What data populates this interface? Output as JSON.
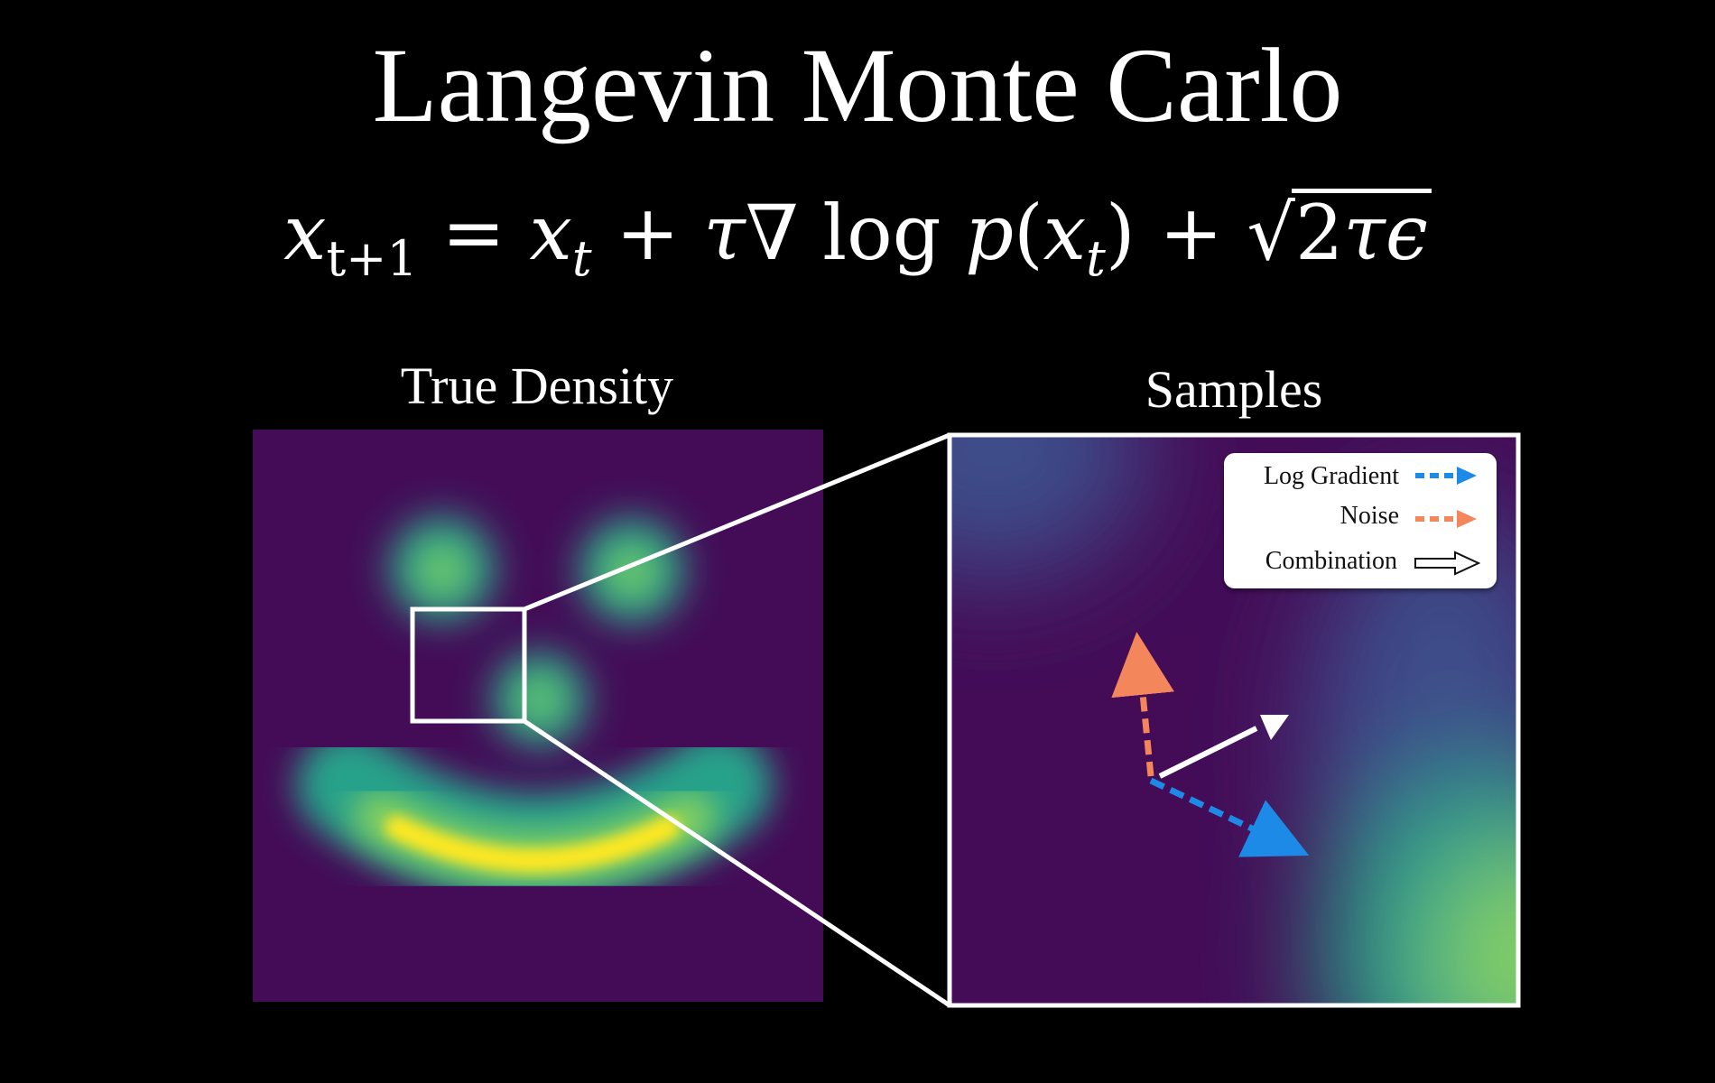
{
  "title": "Langevin Monte Carlo",
  "equation": {
    "lhs_var": "x",
    "lhs_sub": "t+1",
    "eq": "=",
    "term1_var": "x",
    "term1_sub": "t",
    "plus1": "+",
    "tau": "τ",
    "nabla": "∇",
    "log": "log",
    "p": "p",
    "open_paren": "(",
    "inner_var": "x",
    "inner_sub": "t",
    "close_paren": ")",
    "plus2": "+",
    "sqrt_sign": "√",
    "sqrt_two": "2",
    "sqrt_tau": "τ",
    "epsilon": "ϵ"
  },
  "panels": {
    "true_density": {
      "label": "True Density"
    },
    "samples": {
      "label": "Samples"
    }
  },
  "legend": {
    "items": [
      {
        "label": "Log Gradient",
        "color": "#1e8ae8",
        "style": "dashed"
      },
      {
        "label": "Noise",
        "color": "#f4865c",
        "style": "dashed"
      },
      {
        "label": "Combination",
        "color": "#ffffff",
        "style": "outline"
      }
    ]
  },
  "colors": {
    "background": "#000000",
    "viridis_dark": "#440c57",
    "viridis_mid": "#3d4e8a",
    "viridis_teal": "#26a28a",
    "viridis_green": "#8bd45c",
    "viridis_yellow": "#fde724",
    "gradient_arrow": "#1e8ae8",
    "noise_arrow": "#f4865c",
    "combination_arrow": "#ffffff"
  }
}
